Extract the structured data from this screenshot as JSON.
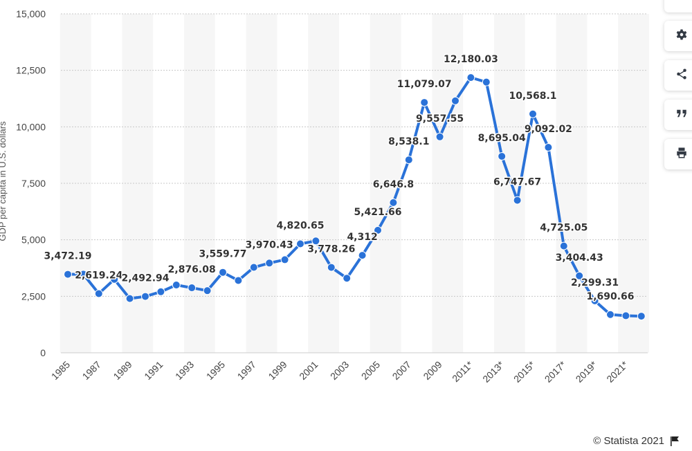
{
  "chart_data": {
    "type": "line",
    "ylabel": "GDP per capita in U.S. dollars",
    "ylim": [
      0,
      15000
    ],
    "yticks": [
      0,
      2500,
      5000,
      7500,
      10000,
      12500,
      15000
    ],
    "ytick_labels": [
      "0",
      "2,500",
      "5,000",
      "7,500",
      "10,000",
      "12,500",
      "15,000"
    ],
    "x": [
      "1985",
      "1986",
      "1987",
      "1988",
      "1989",
      "1990",
      "1991",
      "1992",
      "1993",
      "1994",
      "1995",
      "1996",
      "1997",
      "1998",
      "1999",
      "2000",
      "2001",
      "2002",
      "2003",
      "2004",
      "2005",
      "2006",
      "2007",
      "2008",
      "2009",
      "2010",
      "2011*",
      "2012*",
      "2013*",
      "2014*",
      "2015*",
      "2016*",
      "2017*",
      "2018*",
      "2019*",
      "2020*",
      "2021*",
      "2022*"
    ],
    "xtick_labels": [
      "1985",
      "1987",
      "1989",
      "1991",
      "1993",
      "1995",
      "1997",
      "1999",
      "2001",
      "2003",
      "2005",
      "2007",
      "2009",
      "2011*",
      "2013*",
      "2015*",
      "2017*",
      "2019*",
      "2021*"
    ],
    "values": [
      3472.19,
      3480,
      2619.24,
      3250,
      2400,
      2492.94,
      2700,
      3000,
      2876.08,
      2750,
      3559.77,
      3200,
      3780,
      3970.43,
      4120,
      4820.65,
      4950,
      3778.26,
      3300,
      4312,
      5421.66,
      6646.8,
      8538.1,
      11079.07,
      9557.55,
      11150,
      12180.03,
      11980,
      8695.04,
      6747.67,
      10568.1,
      9092.02,
      4725.05,
      3404.43,
      2299.31,
      1690.66,
      1640,
      1620
    ],
    "data_labels": [
      {
        "index": 0,
        "text": "3,472.19"
      },
      {
        "index": 2,
        "text": "2,619.24"
      },
      {
        "index": 5,
        "text": "2,492.94"
      },
      {
        "index": 8,
        "text": "2,876.08"
      },
      {
        "index": 10,
        "text": "3,559.77"
      },
      {
        "index": 13,
        "text": "3,970.43"
      },
      {
        "index": 15,
        "text": "4,820.65"
      },
      {
        "index": 17,
        "text": "3,778.26"
      },
      {
        "index": 19,
        "text": "4,312"
      },
      {
        "index": 20,
        "text": "5,421.66"
      },
      {
        "index": 21,
        "text": "6,646.8"
      },
      {
        "index": 22,
        "text": "8,538.1"
      },
      {
        "index": 23,
        "text": "11,079.07"
      },
      {
        "index": 24,
        "text": "9,557.55"
      },
      {
        "index": 26,
        "text": "12,180.03"
      },
      {
        "index": 28,
        "text": "8,695.04"
      },
      {
        "index": 29,
        "text": "6,747.67"
      },
      {
        "index": 30,
        "text": "10,568.1"
      },
      {
        "index": 31,
        "text": "9,092.02"
      },
      {
        "index": 32,
        "text": "4,725.05"
      },
      {
        "index": 33,
        "text": "3,404.43"
      },
      {
        "index": 34,
        "text": "2,299.31"
      },
      {
        "index": 35,
        "text": "1,690.66"
      }
    ],
    "line_color": "#2a72d8",
    "grid": true,
    "legend": "none"
  },
  "toolbar": {
    "buttons": [
      {
        "name": "notification-button",
        "icon": "bell-icon"
      },
      {
        "name": "settings-button",
        "icon": "gear-icon"
      },
      {
        "name": "share-button",
        "icon": "share-icon"
      },
      {
        "name": "cite-button",
        "icon": "quote-icon"
      },
      {
        "name": "print-button",
        "icon": "print-icon"
      }
    ]
  },
  "credit": {
    "text": "© Statista 2021",
    "icon": "flag-icon"
  }
}
